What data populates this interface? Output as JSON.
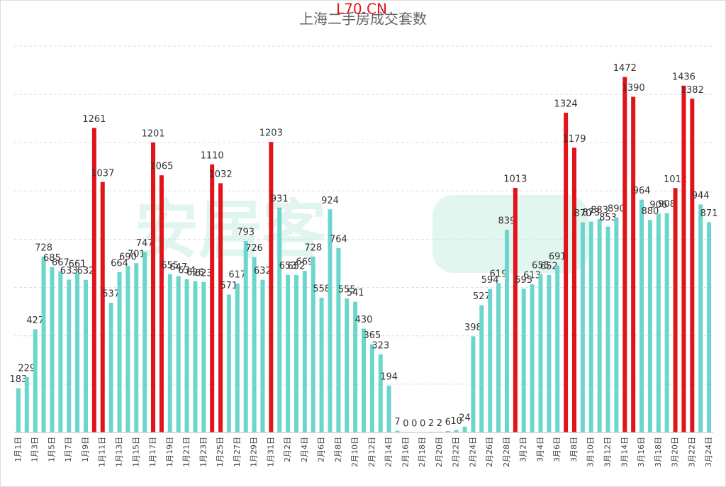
{
  "chart_data": {
    "type": "bar",
    "title": "上海二手房成交套数",
    "watermark": "L70.CN",
    "categories": [
      "1月1日",
      null,
      "1月3日",
      null,
      "1月5日",
      null,
      "1月7日",
      null,
      "1月9日",
      null,
      "1月11日",
      null,
      "1月13日",
      null,
      "1月15日",
      null,
      "1月17日",
      null,
      "1月19日",
      null,
      "1月21日",
      null,
      "1月23日",
      null,
      "1月25日",
      null,
      "1月27日",
      null,
      "1月29日",
      null,
      "1月31日",
      null,
      "2月2日",
      null,
      "2月4日",
      null,
      "2月6日",
      null,
      "2月8日",
      null,
      "2月10日",
      null,
      "2月12日",
      null,
      "2月14日",
      null,
      "2月16日",
      null,
      "2月18日",
      null,
      "2月20日",
      null,
      "2月22日",
      null,
      "2月24日",
      null,
      "2月26日",
      null,
      "2月28日",
      null,
      "3月2日",
      null,
      "3月4日",
      null,
      "3月6日",
      null,
      "3月8日",
      null,
      "3月10日",
      null,
      "3月12日",
      null,
      "3月14日",
      null,
      "3月16日",
      null,
      "3月18日",
      null,
      "3月20日",
      null,
      "3月22日",
      null,
      "3月24日"
    ],
    "values": [
      183,
      229,
      427,
      728,
      685,
      667,
      633,
      661,
      632,
      1261,
      1037,
      537,
      664,
      690,
      701,
      747,
      1201,
      1065,
      655,
      647,
      634,
      626,
      623,
      1110,
      1032,
      571,
      617,
      793,
      726,
      632,
      1203,
      931,
      653,
      652,
      669,
      728,
      558,
      924,
      764,
      555,
      541,
      430,
      365,
      323,
      194,
      7,
      0,
      0,
      0,
      2,
      2,
      6,
      10,
      24,
      398,
      527,
      594,
      619,
      839,
      1013,
      595,
      613,
      655,
      652,
      691,
      1324,
      1179,
      870,
      873,
      883,
      853,
      890,
      1472,
      1390,
      964,
      880,
      906,
      908,
      1012,
      1436,
      1382,
      944,
      871
    ],
    "colors": [
      "#6dd6cc",
      "#6dd6cc",
      "#6dd6cc",
      "#6dd6cc",
      "#6dd6cc",
      "#6dd6cc",
      "#6dd6cc",
      "#6dd6cc",
      "#6dd6cc",
      "#e01419",
      "#e01419",
      "#6dd6cc",
      "#6dd6cc",
      "#6dd6cc",
      "#6dd6cc",
      "#6dd6cc",
      "#e01419",
      "#e01419",
      "#6dd6cc",
      "#6dd6cc",
      "#6dd6cc",
      "#6dd6cc",
      "#6dd6cc",
      "#e01419",
      "#e01419",
      "#6dd6cc",
      "#6dd6cc",
      "#6dd6cc",
      "#6dd6cc",
      "#6dd6cc",
      "#e01419",
      "#6dd6cc",
      "#6dd6cc",
      "#6dd6cc",
      "#6dd6cc",
      "#6dd6cc",
      "#6dd6cc",
      "#6dd6cc",
      "#6dd6cc",
      "#6dd6cc",
      "#6dd6cc",
      "#6dd6cc",
      "#6dd6cc",
      "#6dd6cc",
      "#6dd6cc",
      "#6dd6cc",
      "#6dd6cc",
      "#6dd6cc",
      "#6dd6cc",
      "#6dd6cc",
      "#6dd6cc",
      "#6dd6cc",
      "#6dd6cc",
      "#6dd6cc",
      "#6dd6cc",
      "#6dd6cc",
      "#6dd6cc",
      "#6dd6cc",
      "#6dd6cc",
      "#e01419",
      "#6dd6cc",
      "#6dd6cc",
      "#6dd6cc",
      "#6dd6cc",
      "#6dd6cc",
      "#e01419",
      "#e01419",
      "#6dd6cc",
      "#6dd6cc",
      "#6dd6cc",
      "#6dd6cc",
      "#6dd6cc",
      "#e01419",
      "#e01419",
      "#6dd6cc",
      "#6dd6cc",
      "#6dd6cc",
      "#6dd6cc",
      "#e01419",
      "#e01419",
      "#e01419",
      "#6dd6cc",
      "#6dd6cc"
    ],
    "ylim": [
      0,
      1600
    ],
    "yticks": [
      0,
      200,
      400,
      600,
      800,
      1000,
      1200,
      1400,
      1600
    ],
    "grid": true
  }
}
